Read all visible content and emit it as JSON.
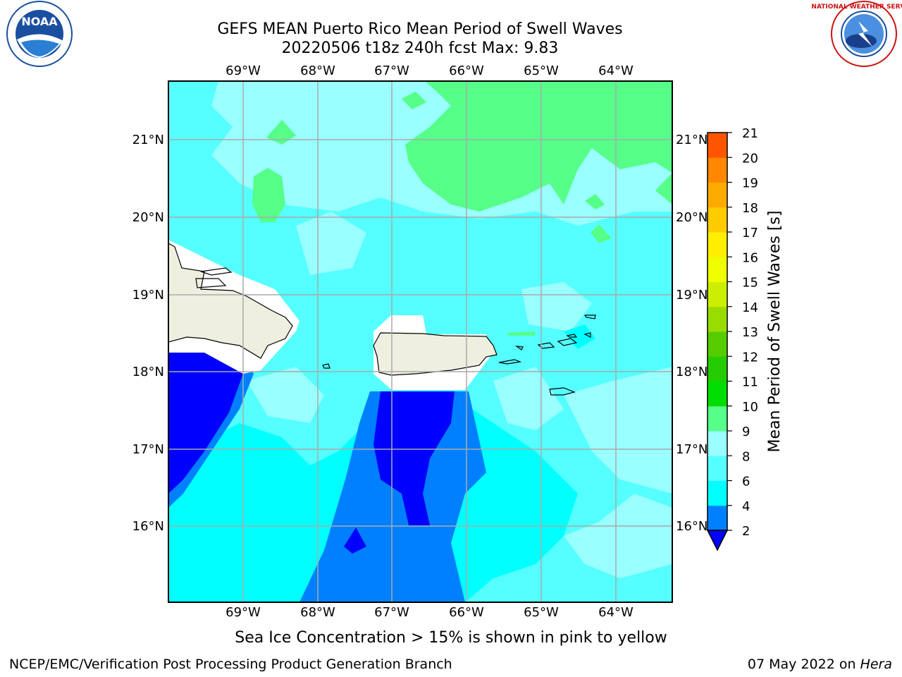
{
  "header": {
    "title_line1": "GEFS MEAN Puerto Rico Mean Period of Swell Waves",
    "title_line2": "20220506 t18z 240h fcst   Max: 9.83"
  },
  "logos": {
    "noaa_text": "NOAA",
    "noaa_ring_text": "NATIONAL OCEANIC AND ATMOSPHERIC ADMINISTRATION · U.S. DEPARTMENT OF COMMERCE",
    "nws_ring_text": "NATIONAL WEATHER SERVICE"
  },
  "map": {
    "lon_ticks": [
      "69°W",
      "68°W",
      "67°W",
      "66°W",
      "65°W",
      "64°W"
    ],
    "lat_ticks": [
      "21°N",
      "20°N",
      "19°N",
      "18°N",
      "17°N",
      "16°N"
    ],
    "region": "Puerto Rico",
    "field_min_color": "#0000ff",
    "land_color": "#efefe0"
  },
  "colorbar": {
    "label": "Mean Period of Swell Waves [s]",
    "ticks": [
      "2",
      "4",
      "6",
      "8",
      "9",
      "10",
      "11",
      "12",
      "13",
      "14",
      "15",
      "16",
      "17",
      "18",
      "19",
      "20",
      "21"
    ],
    "colors": [
      "#0080ff",
      "#00ffff",
      "#55ffff",
      "#99ffff",
      "#55ff88",
      "#00dd00",
      "#22cc00",
      "#55cc00",
      "#99dd00",
      "#ccee00",
      "#eeff00",
      "#ffee00",
      "#ffcc00",
      "#ffaa00",
      "#ff8800",
      "#ff5500",
      "#ff2a00",
      "#ff0000"
    ],
    "under_color": "#0000ff"
  },
  "caption": "Sea Ice Concentration > 15% is shown in pink to yellow",
  "footer": {
    "left": "NCEP/EMC/Verification Post Processing Product Generation Branch",
    "date": "07 May 2022 on",
    "machine": "Hera"
  }
}
